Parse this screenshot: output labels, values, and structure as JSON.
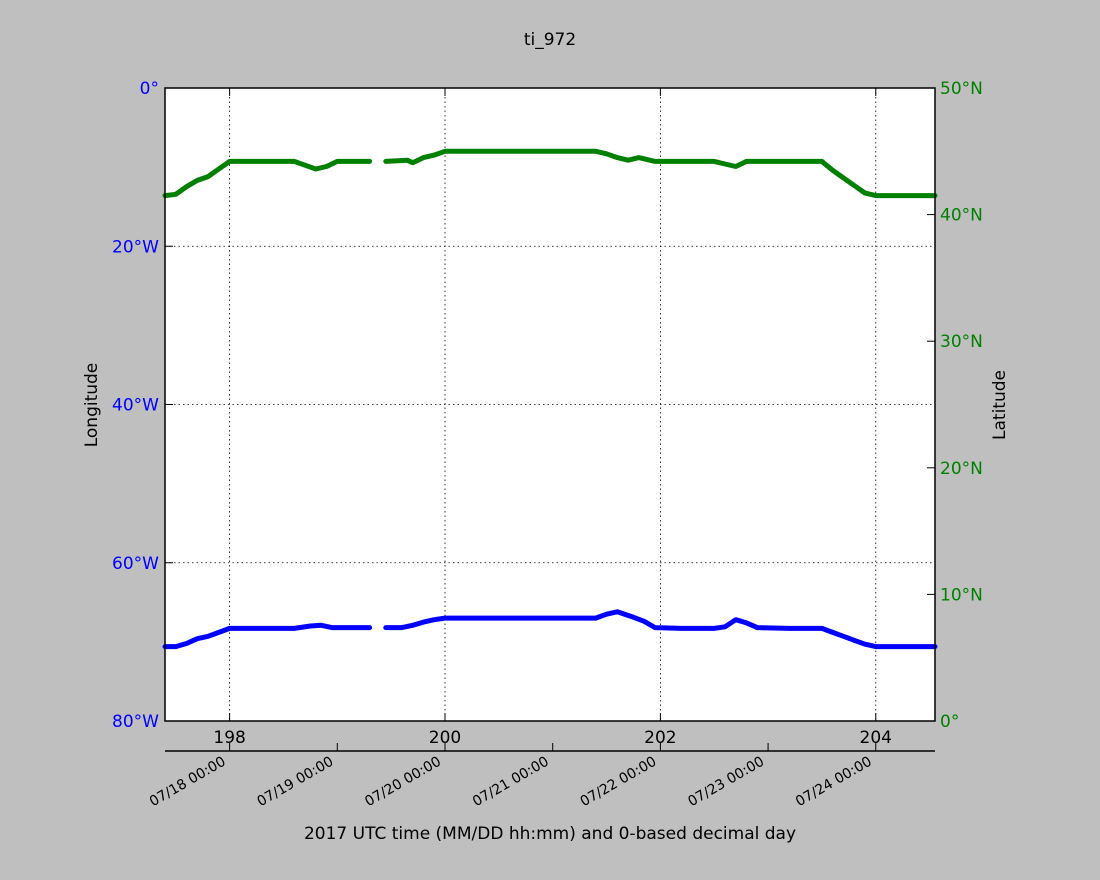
{
  "chart_data": {
    "type": "line",
    "title": "ti_972",
    "xlabel": "2017 UTC time (MM/DD hh:mm) and 0-based decimal day",
    "ylabel_left": "Longitude",
    "ylabel_right": "Latitude",
    "xlim": [
      197.4,
      204.55
    ],
    "ylim_left": [
      -80,
      0
    ],
    "ylim_right": [
      0,
      50
    ],
    "grid": true,
    "colors": {
      "longitude": "#0000ff",
      "latitude": "#008000",
      "background": "#bfbfbf",
      "plot_area": "#ffffff"
    },
    "x_ticks_top": [
      198,
      200,
      202,
      204
    ],
    "x_ticklabels_top": [
      "198",
      "200",
      "202",
      "204"
    ],
    "x_ticks_bottom": [
      198.0,
      199.0,
      200.0,
      201.0,
      202.0,
      203.0,
      204.0
    ],
    "x_ticklabels_bottom": [
      "07/18 00:00",
      "07/19 00:00",
      "07/20 00:00",
      "07/21 00:00",
      "07/22 00:00",
      "07/23 00:00",
      "07/24 00:00"
    ],
    "y_ticks_left": [
      0,
      -20,
      -40,
      -60,
      -80
    ],
    "y_ticklabels_left": [
      "0°",
      "20°W",
      "40°W",
      "60°W",
      "80°W"
    ],
    "y_ticks_right": [
      50,
      40,
      30,
      20,
      10,
      0
    ],
    "y_ticklabels_right": [
      "50°N",
      "40°N",
      "30°N",
      "20°N",
      "10°N",
      "0°"
    ],
    "series": [
      {
        "axis": "left",
        "color": "#0000ff",
        "segments": [
          [
            [
              197.4,
              -70.6
            ],
            [
              197.5,
              -70.6
            ],
            [
              197.6,
              -70.2
            ],
            [
              197.7,
              -69.6
            ],
            [
              197.8,
              -69.3
            ],
            [
              197.9,
              -68.8
            ],
            [
              198.0,
              -68.3
            ],
            [
              198.2,
              -68.3
            ],
            [
              198.6,
              -68.3
            ],
            [
              198.75,
              -68.0
            ],
            [
              198.85,
              -67.9
            ],
            [
              198.95,
              -68.2
            ],
            [
              199.3,
              -68.2
            ]
          ],
          [
            [
              199.45,
              -68.2
            ],
            [
              199.6,
              -68.2
            ],
            [
              199.7,
              -67.9
            ],
            [
              199.8,
              -67.5
            ],
            [
              199.9,
              -67.2
            ],
            [
              200.0,
              -67.0
            ],
            [
              200.5,
              -67.0
            ],
            [
              201.0,
              -67.0
            ],
            [
              201.4,
              -67.0
            ],
            [
              201.5,
              -66.5
            ],
            [
              201.6,
              -66.2
            ],
            [
              201.75,
              -66.9
            ],
            [
              201.85,
              -67.4
            ],
            [
              201.95,
              -68.2
            ],
            [
              202.2,
              -68.3
            ],
            [
              202.5,
              -68.3
            ],
            [
              202.6,
              -68.1
            ],
            [
              202.7,
              -67.2
            ],
            [
              202.8,
              -67.6
            ],
            [
              202.9,
              -68.2
            ],
            [
              203.2,
              -68.3
            ],
            [
              203.5,
              -68.3
            ],
            [
              203.6,
              -68.8
            ],
            [
              203.7,
              -69.3
            ],
            [
              203.8,
              -69.8
            ],
            [
              203.9,
              -70.3
            ],
            [
              204.0,
              -70.6
            ],
            [
              204.55,
              -70.6
            ]
          ]
        ]
      },
      {
        "axis": "right",
        "color": "#008000",
        "segments": [
          [
            [
              197.4,
              41.5
            ],
            [
              197.5,
              41.6
            ],
            [
              197.6,
              42.2
            ],
            [
              197.7,
              42.7
            ],
            [
              197.8,
              43.0
            ],
            [
              197.9,
              43.6
            ],
            [
              198.0,
              44.2
            ],
            [
              198.3,
              44.2
            ],
            [
              198.6,
              44.2
            ],
            [
              198.7,
              43.9
            ],
            [
              198.8,
              43.6
            ],
            [
              198.9,
              43.8
            ],
            [
              199.0,
              44.2
            ],
            [
              199.3,
              44.2
            ]
          ],
          [
            [
              199.45,
              44.2
            ],
            [
              199.65,
              44.3
            ],
            [
              199.7,
              44.1
            ],
            [
              199.8,
              44.5
            ],
            [
              199.9,
              44.7
            ],
            [
              200.0,
              45.0
            ],
            [
              201.0,
              45.0
            ],
            [
              201.4,
              45.0
            ],
            [
              201.5,
              44.8
            ],
            [
              201.6,
              44.5
            ],
            [
              201.7,
              44.3
            ],
            [
              201.8,
              44.5
            ],
            [
              201.95,
              44.2
            ],
            [
              202.2,
              44.2
            ],
            [
              202.5,
              44.2
            ],
            [
              202.6,
              44.0
            ],
            [
              202.7,
              43.8
            ],
            [
              202.8,
              44.2
            ],
            [
              202.9,
              44.2
            ],
            [
              203.2,
              44.2
            ],
            [
              203.5,
              44.2
            ],
            [
              203.6,
              43.5
            ],
            [
              203.7,
              42.9
            ],
            [
              203.8,
              42.3
            ],
            [
              203.9,
              41.7
            ],
            [
              204.0,
              41.5
            ],
            [
              204.55,
              41.5
            ]
          ]
        ]
      }
    ]
  }
}
